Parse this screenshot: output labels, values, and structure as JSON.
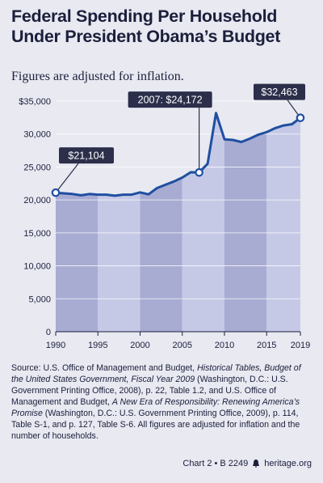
{
  "title": "Federal Spending Per Household Under President Obama’s Budget",
  "subtitle": "Figures are adjusted for inflation.",
  "chart_data": {
    "type": "area",
    "x": [
      1990,
      1991,
      1992,
      1993,
      1994,
      1995,
      1996,
      1997,
      1998,
      1999,
      2000,
      2001,
      2002,
      2003,
      2004,
      2005,
      2006,
      2007,
      2008,
      2009,
      2010,
      2011,
      2012,
      2013,
      2014,
      2015,
      2016,
      2017,
      2018,
      2019
    ],
    "values": [
      21104,
      21000,
      20900,
      20700,
      20900,
      20800,
      20800,
      20650,
      20800,
      20800,
      21150,
      20850,
      21800,
      22300,
      22800,
      23400,
      24200,
      24172,
      25500,
      33200,
      29200,
      29100,
      28800,
      29300,
      29900,
      30300,
      30900,
      31300,
      31500,
      32463
    ],
    "ylim": [
      0,
      35000
    ],
    "yticks": [
      "$35,000",
      "30,000",
      "25,000",
      "20,000",
      "15,000",
      "10,000",
      "5,000",
      "0"
    ],
    "ytick_values": [
      35000,
      30000,
      25000,
      20000,
      15000,
      10000,
      5000,
      0
    ],
    "xticks": [
      "1990",
      "1995",
      "2000",
      "2005",
      "2010",
      "2015",
      "2019"
    ],
    "xtick_values": [
      1990,
      1995,
      2000,
      2005,
      2010,
      2015,
      2019
    ],
    "band_edges": [
      1990,
      1995,
      2000,
      2005,
      2010,
      2015,
      2019
    ],
    "annotations": [
      {
        "label": "$21,104",
        "year": 1990,
        "value": 21104
      },
      {
        "label": "2007: $24,172",
        "year": 2007,
        "value": 24172
      },
      {
        "label": "$32,463",
        "year": 2019,
        "value": 32463
      }
    ],
    "colors": {
      "line": "#1f4fa0",
      "band_dark": "#a8acd3",
      "band_light": "#c6c9e6",
      "label_bg": "#2b2f4a",
      "label_text": "#ffffff"
    }
  },
  "source": {
    "label": "Source:",
    "text_1": " U.S. Office of Management and Budget, ",
    "italic_1": "Historical Tables, Budget of the United States Government, Fiscal Year 2009",
    "text_2": " (Washington, D.C.: U.S. Government Printing Office, 2008), p. 22, Table 1.2, and U.S. Office of Management and Budget, ",
    "italic_2": "A New Era of Responsibility: Renewing America’s Promise",
    "text_3": " (Washington, D.C.: U.S. Government Printing Office, 2009), p. 114, Table S-1, and p. 127, Table S-6. All figures are adjusted for inflation and the number of households."
  },
  "footer": {
    "chart_id": "Chart 2 • B 2249",
    "site": "heritage.org"
  }
}
